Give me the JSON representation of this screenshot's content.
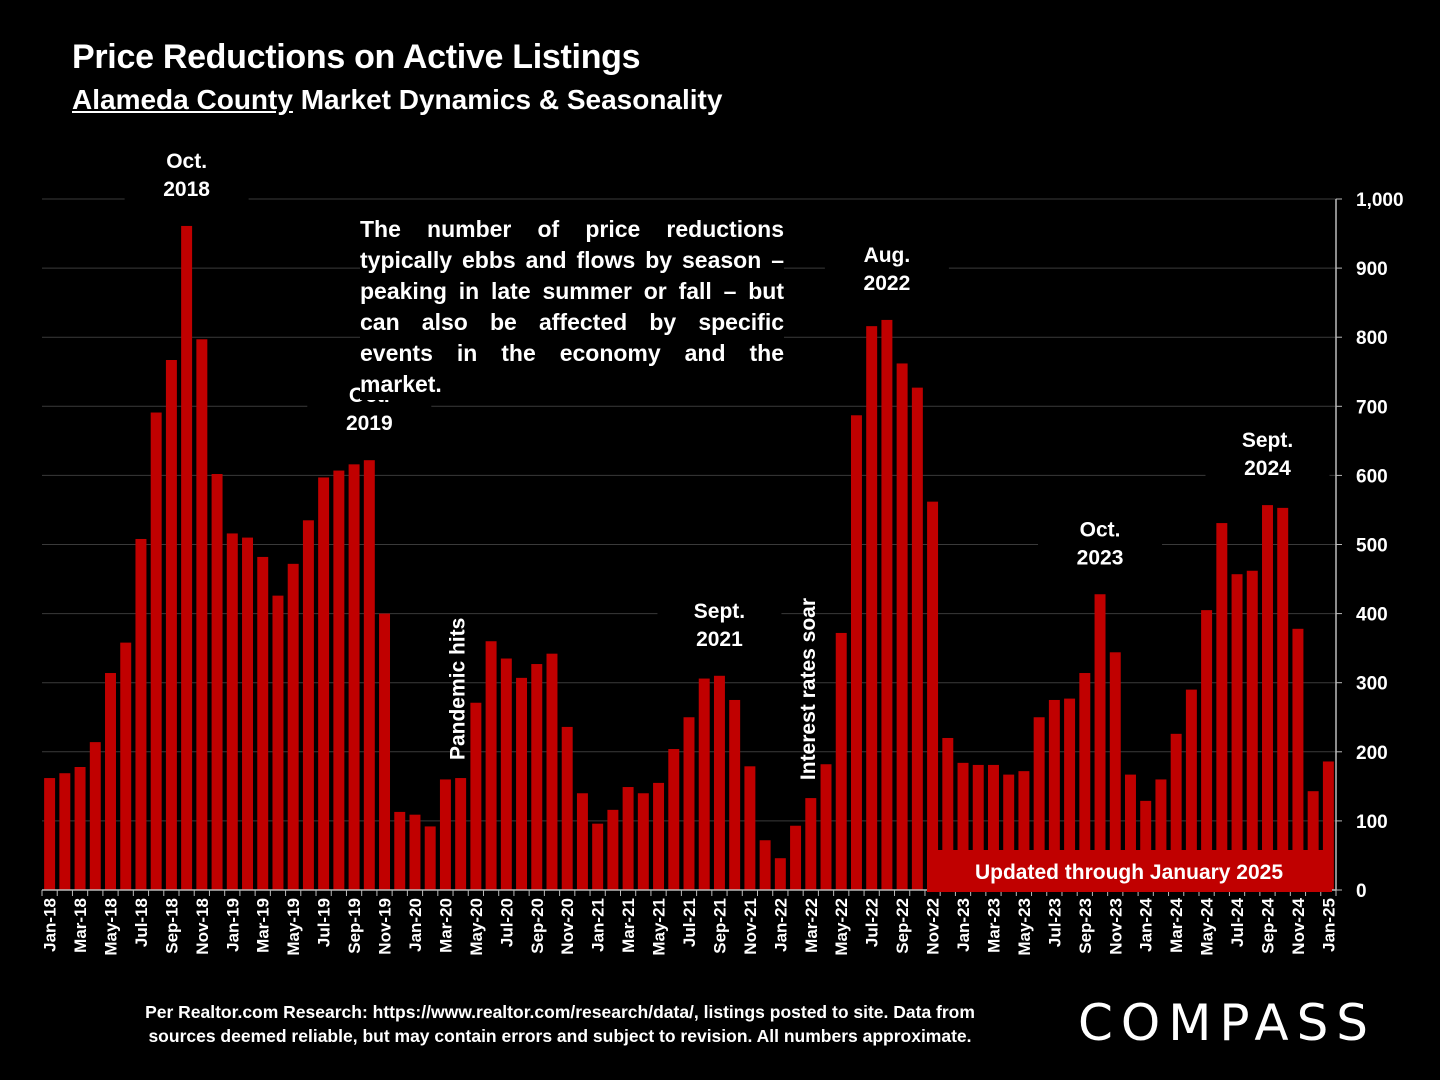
{
  "header": {
    "title": "Price Reductions on Active Listings",
    "subtitle_underlined": "Alameda County",
    "subtitle_rest": " Market Dynamics & Seasonality"
  },
  "note": "The number of price reductions typically ebbs and flows by season – peaking in late summer or fall – but can also be affected by specific events in the economy and the market.",
  "footer": {
    "line1": "Per Realtor.com Research:  https://www.realtor.com/research/data/, listings posted to site. Data from",
    "line2": "sources deemed reliable, but may contain errors and subject to revision. All numbers approximate."
  },
  "logo": "COMPASS",
  "colors": {
    "bar": "#C00000",
    "background": "#000000",
    "grid": "#3a3a3a",
    "text": "#FFFFFF"
  },
  "chart_data": {
    "type": "bar",
    "ylim": [
      0,
      1000
    ],
    "yticks": [
      "0",
      "100",
      "200",
      "300",
      "400",
      "500",
      "600",
      "700",
      "800",
      "900",
      "1,000"
    ],
    "grid": true,
    "y_axis_side": "right",
    "categories": [
      "Jan-18",
      "Feb-18",
      "Mar-18",
      "Apr-18",
      "May-18",
      "Jun-18",
      "Jul-18",
      "Aug-18",
      "Sep-18",
      "Oct-18",
      "Nov-18",
      "Dec-18",
      "Jan-19",
      "Feb-19",
      "Mar-19",
      "Apr-19",
      "May-19",
      "Jun-19",
      "Jul-19",
      "Aug-19",
      "Sep-19",
      "Oct-19",
      "Nov-19",
      "Dec-19",
      "Jan-20",
      "Feb-20",
      "Mar-20",
      "Apr-20",
      "May-20",
      "Jun-20",
      "Jul-20",
      "Aug-20",
      "Sep-20",
      "Oct-20",
      "Nov-20",
      "Dec-20",
      "Jan-21",
      "Feb-21",
      "Mar-21",
      "Apr-21",
      "May-21",
      "Jun-21",
      "Jul-21",
      "Aug-21",
      "Sep-21",
      "Oct-21",
      "Nov-21",
      "Dec-21",
      "Jan-22",
      "Feb-22",
      "Mar-22",
      "Apr-22",
      "May-22",
      "Jun-22",
      "Jul-22",
      "Aug-22",
      "Sep-22",
      "Oct-22",
      "Nov-22",
      "Dec-22",
      "Jan-23",
      "Feb-23",
      "Mar-23",
      "Apr-23",
      "May-23",
      "Jun-23",
      "Jul-23",
      "Aug-23",
      "Sep-23",
      "Oct-23",
      "Nov-23",
      "Dec-23",
      "Jan-24",
      "Feb-24",
      "Mar-24",
      "Apr-24",
      "May-24",
      "Jun-24",
      "Jul-24",
      "Aug-24",
      "Sep-24",
      "Oct-24",
      "Nov-24",
      "Dec-24",
      "Jan-25"
    ],
    "values": [
      162,
      169,
      178,
      214,
      314,
      358,
      508,
      691,
      767,
      961,
      797,
      602,
      516,
      510,
      482,
      426,
      472,
      535,
      597,
      607,
      616,
      622,
      400,
      113,
      109,
      92,
      160,
      162,
      271,
      360,
      335,
      307,
      327,
      342,
      236,
      140,
      96,
      116,
      149,
      140,
      155,
      204,
      250,
      306,
      310,
      275,
      179,
      72,
      46,
      93,
      133,
      182,
      372,
      687,
      816,
      825,
      762,
      727,
      562,
      220,
      184,
      181,
      181,
      167,
      172,
      250,
      275,
      277,
      314,
      428,
      344,
      167,
      129,
      160,
      226,
      290,
      405,
      531,
      457,
      462,
      557,
      553,
      378,
      143,
      186
    ],
    "annotations": [
      {
        "category": "Oct-18",
        "lines": [
          "Oct.",
          "2018"
        ]
      },
      {
        "category": "Oct-19",
        "lines": [
          "Oct.",
          "2019"
        ]
      },
      {
        "category": "Sep-21",
        "lines": [
          "Sept.",
          "2021"
        ]
      },
      {
        "category": "Aug-22",
        "lines": [
          "Aug.",
          "2022"
        ]
      },
      {
        "category": "Oct-23",
        "lines": [
          "Oct.",
          "2023"
        ]
      },
      {
        "category": "Sep-24",
        "lines": [
          "Sept.",
          "2024"
        ]
      }
    ],
    "vertical_notes": [
      {
        "category": "Apr-20",
        "text": "Pandemic hits"
      },
      {
        "category": "Mar-22",
        "text": "Interest rates soar"
      }
    ],
    "banner": "Updated through January 2025"
  }
}
